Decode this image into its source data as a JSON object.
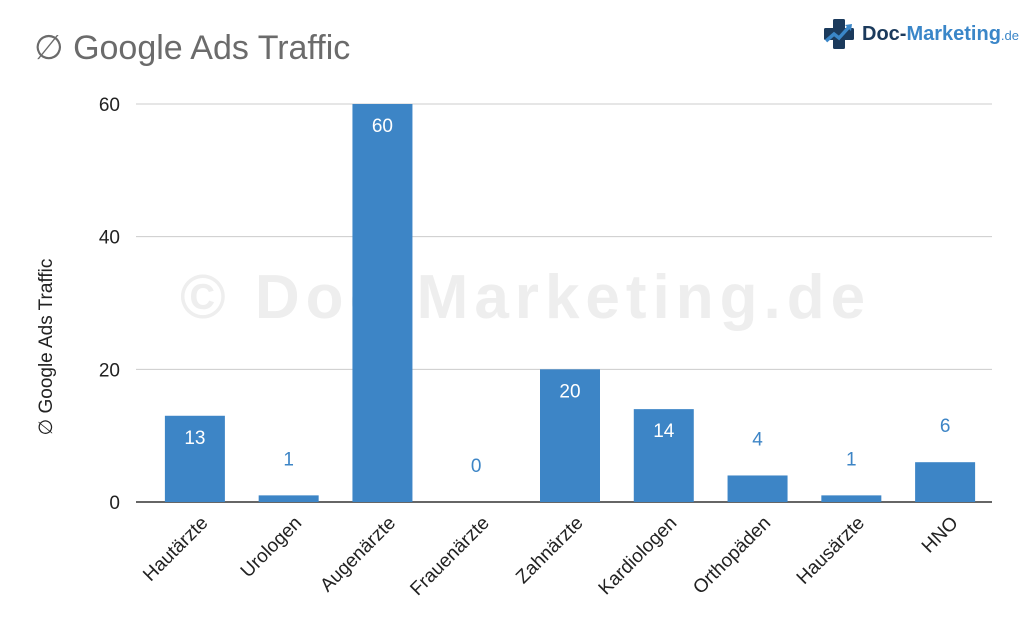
{
  "header": {
    "title": "∅ Google Ads Traffic"
  },
  "logo": {
    "main": "Doc-",
    "accent": "Marketing",
    "tld": ".de",
    "icon": "medical-cross-chart-icon"
  },
  "watermark": "© Doc-Marketing.de",
  "colors": {
    "bar": "#3d85c6",
    "label_inside": "#ffffff",
    "label_outside": "#3d85c6",
    "grid": "#cccccc",
    "axis_text": "#222222"
  },
  "chart_data": {
    "type": "bar",
    "title": "∅ Google Ads Traffic",
    "xlabel": "",
    "ylabel": "∅ Google Ads Traffic",
    "categories": [
      "Hautärzte",
      "Urologen",
      "Augenärzte",
      "Frauenärzte",
      "Zahnärzte",
      "Kardiologen",
      "Orthopäden",
      "Hausärzte",
      "HNO"
    ],
    "values": [
      13,
      1,
      60,
      0,
      20,
      14,
      4,
      1,
      6
    ],
    "data_labels": [
      "13",
      "1",
      "60",
      "0",
      "20",
      "14",
      "4",
      "1",
      "6"
    ],
    "ylim": [
      0,
      60
    ],
    "yticks": [
      0,
      20,
      40,
      60
    ],
    "grid": true,
    "legend": "none"
  }
}
